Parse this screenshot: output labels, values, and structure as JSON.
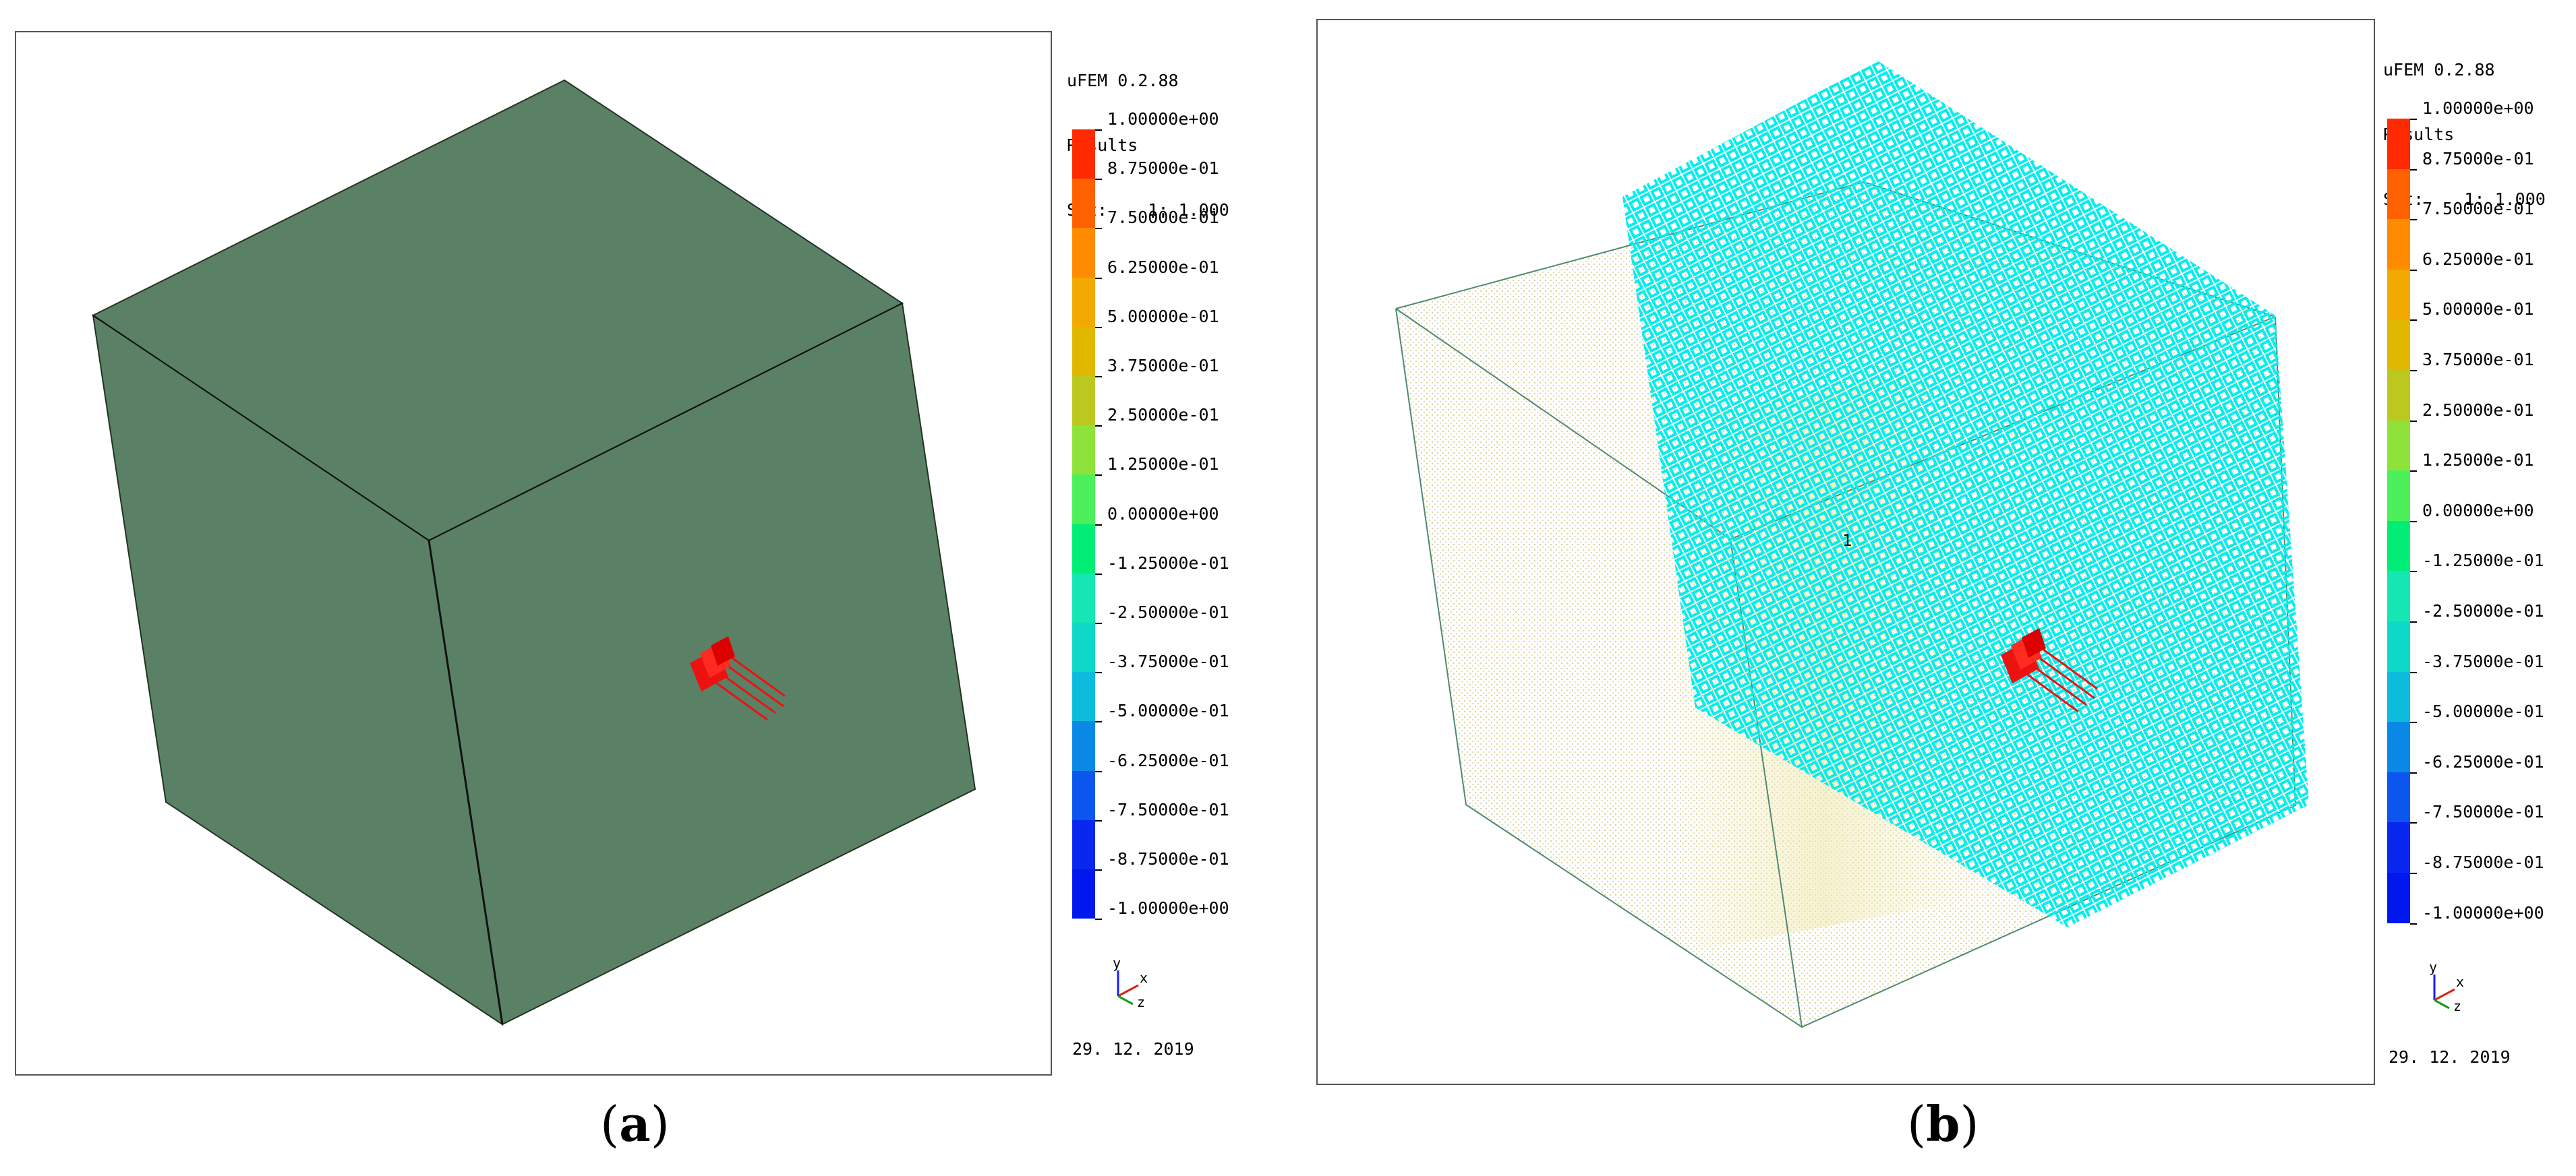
{
  "panels": [
    {
      "id": "a",
      "caption_open": "(",
      "caption_letter": "a",
      "caption_close": ")",
      "app_version": "uFEM 0.2.88",
      "results_label": "Results",
      "set_label": "Set:    1: 1.000",
      "node_label": "",
      "date": "29. 12. 2019"
    },
    {
      "id": "b",
      "caption_open": "(",
      "caption_letter": "b",
      "caption_close": ")",
      "app_version": "uFEM 0.2.88",
      "results_label": "Results",
      "set_label": "Set:    1: 1.000",
      "node_label": "1",
      "date": "29. 12. 2019"
    }
  ],
  "legend": {
    "labels": [
      "1.00000e+00",
      "8.75000e-01",
      "7.50000e-01",
      "6.25000e-01",
      "5.00000e-01",
      "3.75000e-01",
      "2.50000e-01",
      "1.25000e-01",
      "0.00000e+00",
      "-1.25000e-01",
      "-2.50000e-01",
      "-3.75000e-01",
      "-5.00000e-01",
      "-6.25000e-01",
      "-7.50000e-01",
      "-8.75000e-01",
      "-1.00000e+00"
    ],
    "colors": [
      "#ff2a00",
      "#ff6000",
      "#ff8c00",
      "#f2a900",
      "#e0b800",
      "#bcc81e",
      "#8ee23a",
      "#4cf05a",
      "#00ee76",
      "#14e6b4",
      "#0ed8c8",
      "#0cbcdc",
      "#0a88e6",
      "#0a56ee",
      "#0828f0",
      "#0018ee"
    ]
  },
  "triad": {
    "y": "y",
    "x": "x",
    "z": "z"
  },
  "colors": {
    "solid_face": "#5a8166",
    "load_marker": "#ee1111",
    "surface_mesh": "#00eeee",
    "point_cloud": "#d9d19a",
    "wire_edge": "#4f8a72"
  }
}
